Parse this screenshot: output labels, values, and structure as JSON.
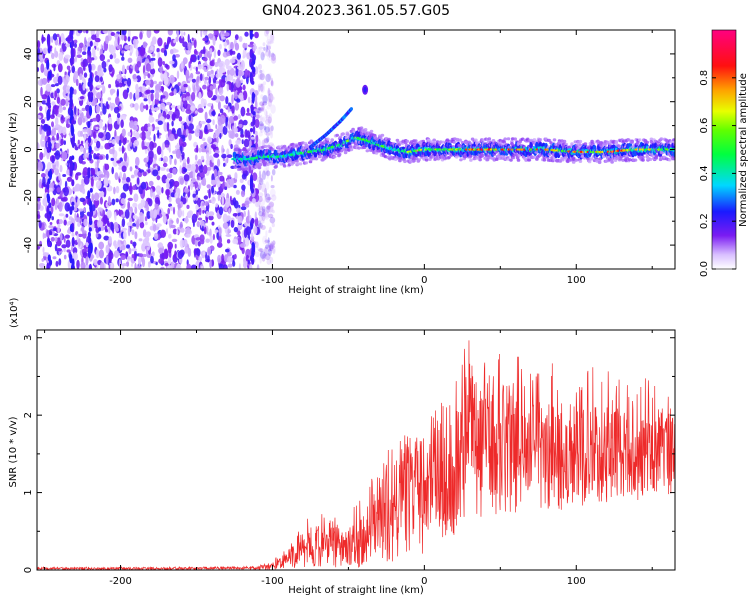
{
  "title": "GN04.2023.361.05.57.G05",
  "colors": {
    "snr_line": "#ee2a2a",
    "spectrogram_background": "#7a1cf2",
    "axis": "#000000"
  },
  "colorbar": {
    "label": "Normalized spectral amplitude",
    "ticks": [
      "0.0",
      "0.2",
      "0.4",
      "0.6",
      "0.8"
    ],
    "tick_values": [
      0.0,
      0.2,
      0.4,
      0.6,
      0.8
    ],
    "range": [
      0,
      1
    ],
    "colormap": "rainbow (violet→blue→cyan→green→yellow→orange→red→magenta)"
  },
  "chart_data": [
    {
      "type": "heatmap",
      "title": "",
      "xlabel": "Height of straight line (km)",
      "ylabel": "Frequency (Hz)",
      "xlim": [
        -255,
        165
      ],
      "ylim": [
        -50,
        50
      ],
      "x_ticks": [
        -200,
        -100,
        0,
        100
      ],
      "x_tick_labels": [
        "-200",
        "-100",
        "0",
        "100"
      ],
      "y_ticks": [
        -40,
        -20,
        0,
        20,
        40
      ],
      "y_tick_labels": [
        "-40",
        "-20",
        "0",
        "20",
        "40"
      ],
      "grid": false,
      "noise_region_x": [
        -255,
        -105
      ],
      "signal_trace": {
        "x": [
          -125,
          -115,
          -105,
          -95,
          -85,
          -75,
          -65,
          -55,
          -45,
          -38,
          -30,
          -20,
          -10,
          0,
          20,
          40,
          60,
          80,
          100,
          120,
          140,
          165
        ],
        "freq_hz": [
          -4,
          -4,
          -3,
          -3,
          -2,
          -1,
          0,
          2,
          5,
          4,
          2,
          0,
          -1,
          0,
          0,
          0,
          0,
          0,
          -1,
          -1,
          0,
          0
        ],
        "peak_amplitude": [
          0.4,
          0.45,
          0.5,
          0.45,
          0.5,
          0.55,
          0.5,
          0.6,
          0.55,
          0.6,
          0.55,
          0.5,
          0.6,
          0.7,
          0.7,
          0.85,
          0.9,
          0.75,
          0.8,
          0.85,
          0.75,
          0.6
        ]
      },
      "doppler_tail": {
        "x": [
          -75,
          -65,
          -55,
          -48
        ],
        "freq_hz": [
          1,
          6,
          12,
          17
        ]
      },
      "isolated_blob": {
        "x": -39,
        "freq_hz": 25
      }
    },
    {
      "type": "line",
      "title": "",
      "xlabel": "Height of straight line (km)",
      "ylabel": "SNR (10 * v/v)",
      "y_scale_note": "(x10⁴)",
      "xlim": [
        -255,
        165
      ],
      "ylim": [
        0,
        3.1
      ],
      "x_ticks": [
        -200,
        -100,
        0,
        100
      ],
      "x_tick_labels": [
        "-200",
        "-100",
        "0",
        "100"
      ],
      "y_ticks": [
        0,
        1,
        2,
        3
      ],
      "y_tick_labels": [
        "0",
        "1",
        "2",
        "3"
      ],
      "grid": false,
      "series": [
        {
          "name": "",
          "envelope_x": [
            -255,
            -150,
            -110,
            -100,
            -90,
            -80,
            -70,
            -62,
            -55,
            -45,
            -38,
            -30,
            -25,
            -18,
            -10,
            -2,
            5,
            15,
            25,
            30,
            35,
            45,
            55,
            65,
            75,
            85,
            95,
            105,
            115,
            125,
            135,
            145,
            155,
            165
          ],
          "envelope_mean": [
            0.02,
            0.02,
            0.03,
            0.06,
            0.15,
            0.3,
            0.3,
            0.42,
            0.35,
            0.3,
            0.45,
            0.7,
            1.0,
            0.9,
            1.0,
            1.1,
            1.1,
            1.2,
            1.6,
            1.9,
            1.7,
            1.7,
            1.65,
            1.7,
            1.6,
            1.5,
            1.6,
            1.5,
            1.55,
            1.6,
            1.55,
            1.5,
            1.55,
            1.6
          ],
          "envelope_max": [
            0.04,
            0.04,
            0.05,
            0.12,
            0.3,
            0.6,
            0.85,
            0.7,
            0.65,
            0.85,
            1.05,
            1.45,
            1.78,
            1.6,
            1.85,
            1.95,
            2.0,
            2.4,
            2.8,
            3.1,
            2.7,
            2.85,
            2.8,
            2.75,
            2.55,
            2.7,
            2.5,
            2.6,
            2.65,
            2.6,
            2.45,
            2.5,
            2.35,
            2.45
          ],
          "envelope_min": [
            0.0,
            0.0,
            0.0,
            0.0,
            0.02,
            0.02,
            0.02,
            0.03,
            0.02,
            0.02,
            0.03,
            0.05,
            0.1,
            0.05,
            0.1,
            0.2,
            0.1,
            0.3,
            0.5,
            0.6,
            0.5,
            0.7,
            0.7,
            0.75,
            0.7,
            0.75,
            0.8,
            0.8,
            0.85,
            0.85,
            0.9,
            0.9,
            0.95,
            0.95
          ]
        }
      ]
    }
  ]
}
